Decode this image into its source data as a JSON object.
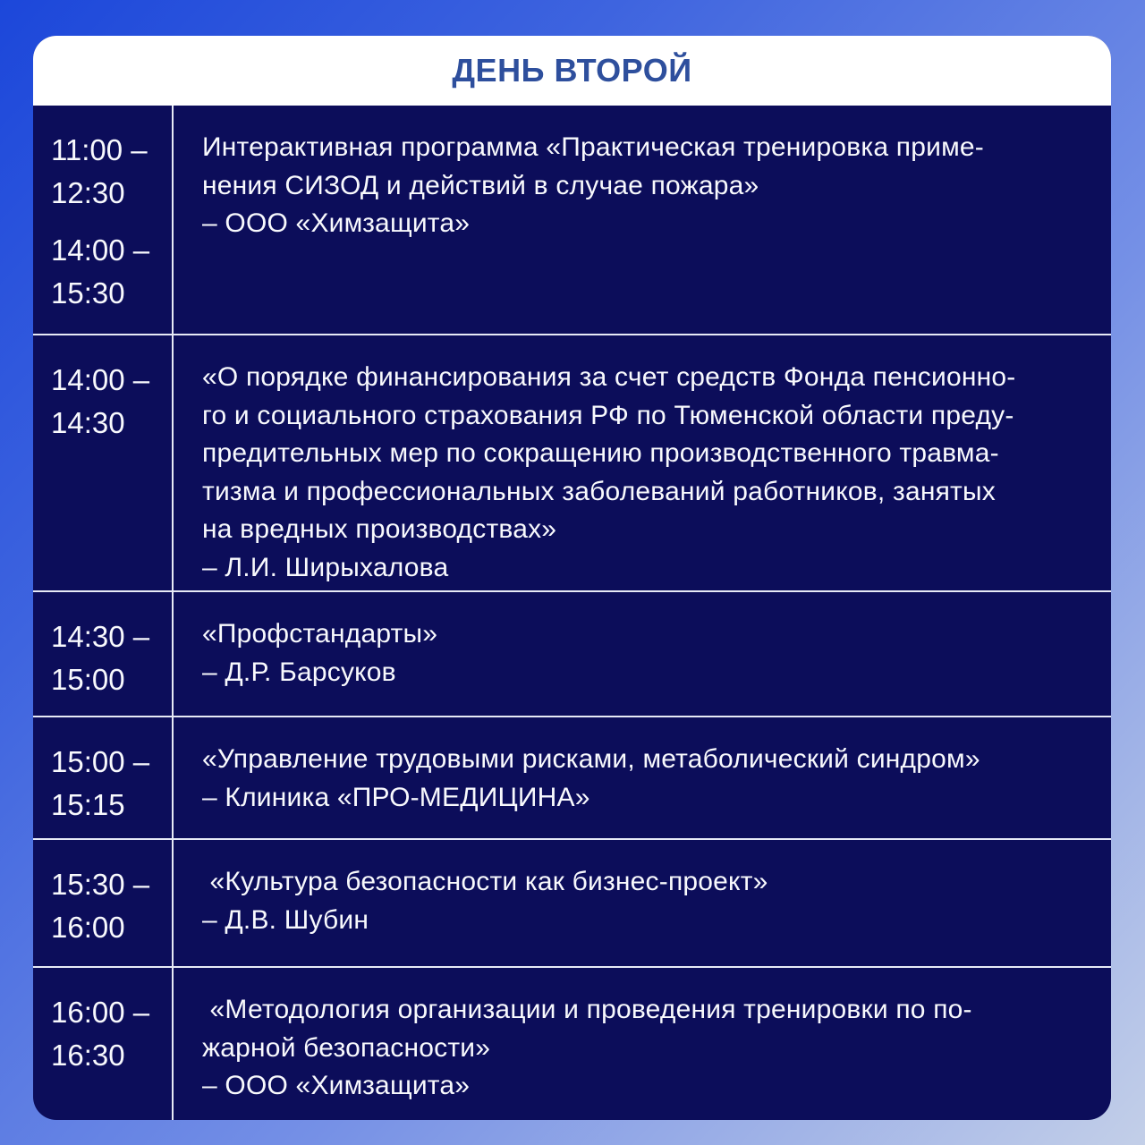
{
  "header": {
    "title": "ДЕНЬ ВТОРОЙ"
  },
  "colors": {
    "background_gradient_start": "#1c47da",
    "background_gradient_end": "#c3cfe8",
    "table_background": "#0c0d5a",
    "header_background": "#ffffff",
    "header_text": "#2e4f9d",
    "body_text": "#f8f9fd",
    "divider": "#e7eaf6"
  },
  "schedule": {
    "rows": [
      {
        "times": [
          "11:00 –\n12:30",
          "14:00 –\n15:30"
        ],
        "description": [
          "Интерактивная программа «Практическая тренировка приме-",
          "нения СИЗОД и действий в случае пожара»",
          "– ООО «Химзащита»"
        ]
      },
      {
        "times": [
          "14:00 –\n14:30"
        ],
        "description": [
          "«О порядке финансирования за счет средств Фонда пенсионно-",
          "го и социального страхования РФ по Тюменской области преду-",
          "предительных мер по сокращению производственного травма-",
          "тизма и профессиональных заболеваний работников, занятых",
          "на вредных производствах»",
          "– Л.И. Ширыхалова"
        ]
      },
      {
        "times": [
          "14:30 –\n15:00"
        ],
        "description": [
          "«Профстандарты»",
          "– Д.Р. Барсуков"
        ]
      },
      {
        "times": [
          "15:00 –\n15:15"
        ],
        "description": [
          "«Управление трудовыми рисками, метаболический синдром»",
          "– Клиника «ПРО-МЕДИЦИНА»"
        ]
      },
      {
        "times": [
          "15:30 –\n16:00"
        ],
        "description": [
          " «Культура безопасности как бизнес-проект»",
          "– Д.В. Шубин"
        ]
      },
      {
        "times": [
          "16:00 –\n16:30"
        ],
        "description": [
          " «Методология организации и проведения тренировки по по-",
          "жарной безопасности»",
          "– ООО «Химзащита»"
        ]
      }
    ]
  }
}
